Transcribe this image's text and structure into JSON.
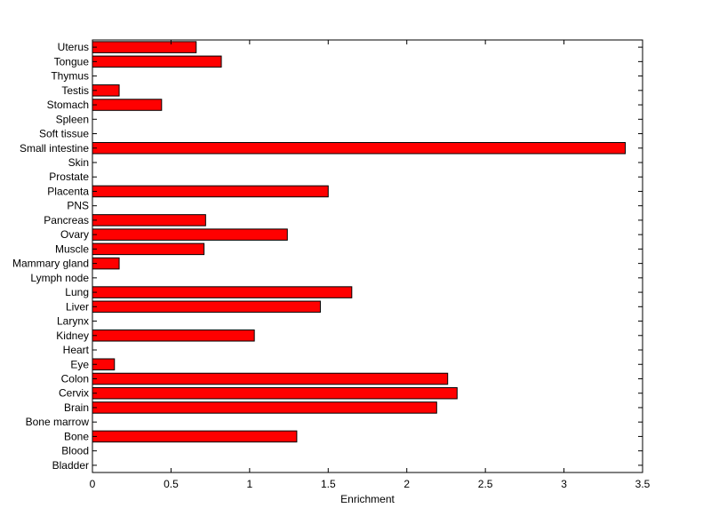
{
  "chart_data": {
    "type": "bar",
    "orientation": "horizontal",
    "categories": [
      "Bladder",
      "Blood",
      "Bone",
      "Bone marrow",
      "Brain",
      "Cervix",
      "Colon",
      "Eye",
      "Heart",
      "Kidney",
      "Larynx",
      "Liver",
      "Lung",
      "Lymph node",
      "Mammary gland",
      "Muscle",
      "Ovary",
      "Pancreas",
      "PNS",
      "Placenta",
      "Prostate",
      "Skin",
      "Small intestine",
      "Soft tissue",
      "Spleen",
      "Stomach",
      "Testis",
      "Thymus",
      "Tongue",
      "Uterus"
    ],
    "values": [
      0,
      0,
      1.3,
      0,
      2.19,
      2.32,
      2.26,
      0.14,
      0,
      1.03,
      0,
      1.45,
      1.65,
      0,
      0.17,
      0.71,
      1.24,
      0.72,
      0,
      1.5,
      0,
      0,
      3.39,
      0,
      0,
      0.44,
      0.17,
      0,
      0.82,
      0.66
    ],
    "xlabel": "Enrichment",
    "ylabel": "",
    "title": "",
    "xlim": [
      0,
      3.5
    ],
    "xticks": [
      "0",
      "0.5",
      "1",
      "1.5",
      "2",
      "2.5",
      "3",
      "3.5"
    ],
    "bar_color": "#ff0000",
    "edge_color": "#000000",
    "grid": false,
    "legend": "none"
  }
}
